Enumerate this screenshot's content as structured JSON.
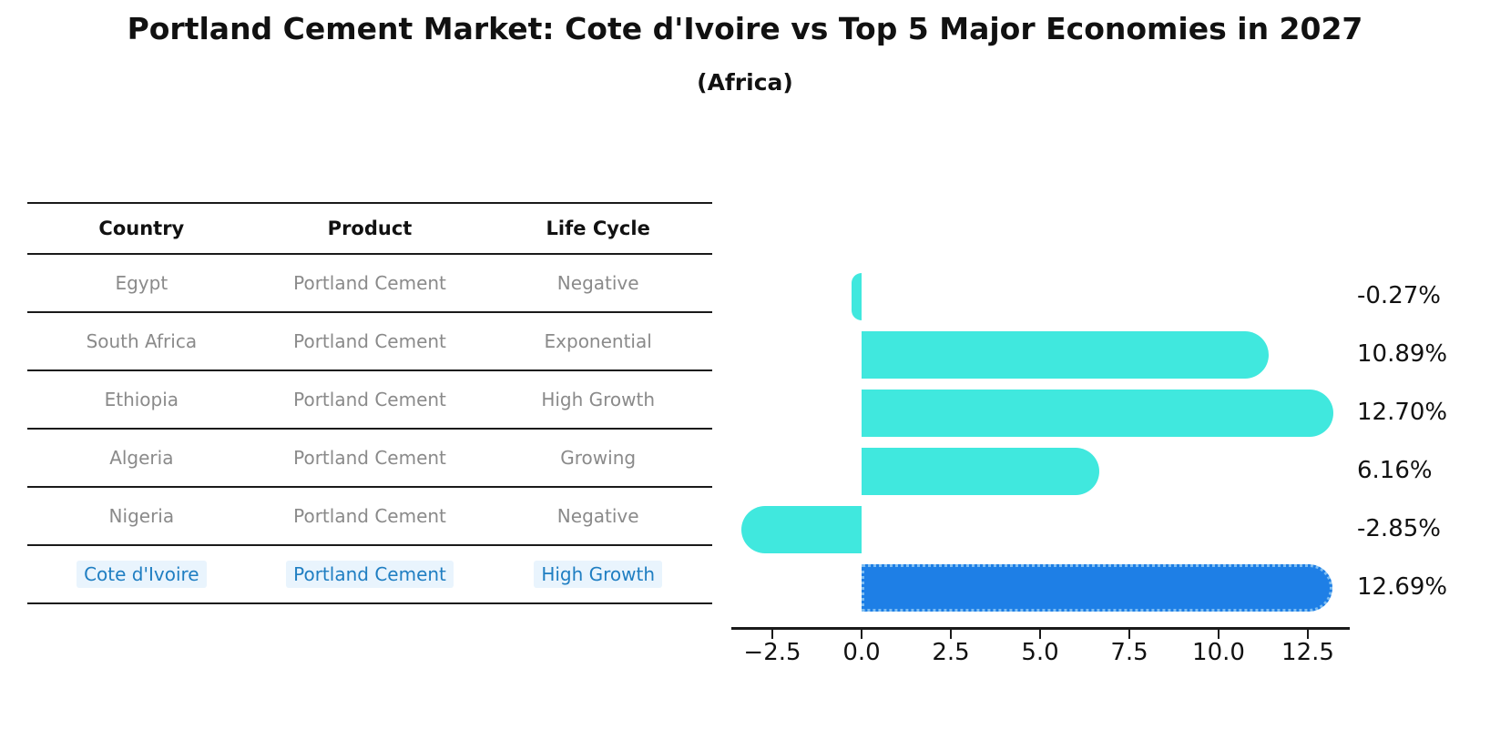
{
  "title": "Portland Cement Market: Cote d'Ivoire vs Top 5 Major Economies in 2027",
  "subtitle": "(Africa)",
  "table": {
    "headers": [
      "Country",
      "Product",
      "Life Cycle"
    ],
    "rows": [
      {
        "country": "Egypt",
        "product": "Portland Cement",
        "life_cycle": "Negative",
        "highlight": false
      },
      {
        "country": "South Africa",
        "product": "Portland Cement",
        "life_cycle": "Exponential",
        "highlight": false
      },
      {
        "country": "Ethiopia",
        "product": "Portland Cement",
        "life_cycle": "High Growth",
        "highlight": false
      },
      {
        "country": "Algeria",
        "product": "Portland Cement",
        "life_cycle": "Growing",
        "highlight": false
      },
      {
        "country": "Nigeria",
        "product": "Portland Cement",
        "life_cycle": "Negative",
        "highlight": false
      },
      {
        "country": "Cote d'Ivoire",
        "product": "Portland Cement",
        "life_cycle": "High Growth",
        "highlight": true
      }
    ]
  },
  "chart_data": {
    "type": "bar",
    "orientation": "horizontal",
    "title": "",
    "xlabel": "",
    "ylabel": "",
    "categories": [
      "Egypt",
      "South Africa",
      "Ethiopia",
      "Algeria",
      "Nigeria",
      "Cote d'Ivoire"
    ],
    "values": [
      -0.27,
      10.89,
      12.7,
      6.16,
      -2.85,
      12.69
    ],
    "value_labels": [
      "-0.27%",
      "10.89%",
      "12.70%",
      "6.16%",
      "-2.85%",
      "12.69%"
    ],
    "x_ticks": [
      "−2.5",
      "0.0",
      "2.5",
      "5.0",
      "7.5",
      "10.0",
      "12.5"
    ],
    "x_tick_values": [
      -2.5,
      0.0,
      2.5,
      5.0,
      7.5,
      10.0,
      12.5
    ],
    "xlim": [
      -3.65,
      13.65
    ],
    "grid": false,
    "legend": false,
    "highlight_index": 5,
    "bar_color": "#40e8de",
    "highlight_bar_color": "#1e7fe6",
    "highlight_border_color": "#7fbef2",
    "value_label_color": "#111111",
    "axis_color": "#1a1a1a",
    "table_text_color": "#8a8a8a",
    "highlight_text_color": "#1f7ec2"
  }
}
